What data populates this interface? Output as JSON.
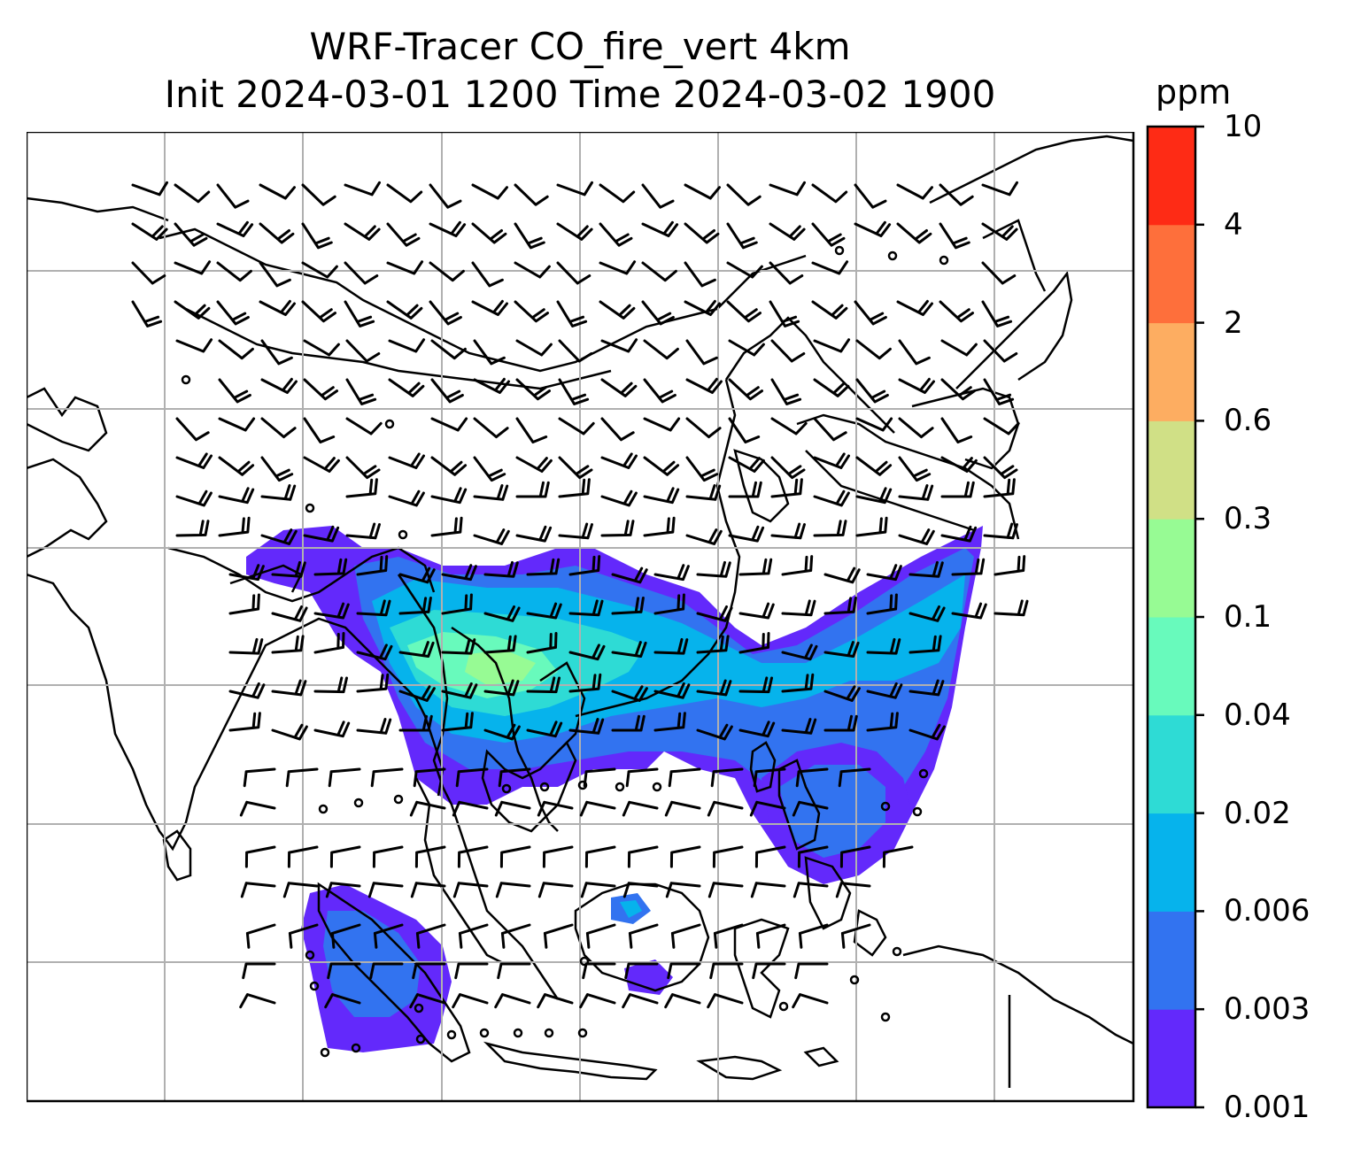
{
  "title": {
    "line1": "WRF-Tracer CO_fire_vert 4km",
    "line2": "Init 2024-03-01 1200 Time 2024-03-02 1900"
  },
  "colorbar": {
    "unit": "ppm",
    "levels": [
      "0.001",
      "0.003",
      "0.006",
      "0.02",
      "0.04",
      "0.1",
      "0.3",
      "0.6",
      "2",
      "4",
      "10"
    ],
    "colors": [
      "#6329fb",
      "#3273f0",
      "#06b3ec",
      "#2edbd5",
      "#68fabc",
      "#97fb94",
      "#d0e086",
      "#fdad61",
      "#fe6f3b",
      "#fe2b15"
    ]
  },
  "map": {
    "plume_color_levels": [
      "#6329fb",
      "#3273f0",
      "#06b3ec",
      "#2edbd5",
      "#68fabc",
      "#97fb94"
    ],
    "grid": true,
    "coastline_color": "#000000"
  }
}
